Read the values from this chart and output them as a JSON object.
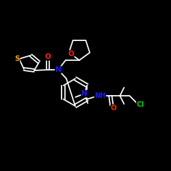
{
  "bg_color": "#000000",
  "bond_color": "#ffffff",
  "atom_colors": {
    "N": "#1a1aff",
    "O": "#ff2200",
    "S": "#ffa500",
    "Cl": "#00cc00",
    "C": "#ffffff",
    "H": "#ffffff"
  },
  "figsize": [
    2.5,
    2.5
  ],
  "dpi": 100,
  "lw": 1.3,
  "font_size": 7.5
}
